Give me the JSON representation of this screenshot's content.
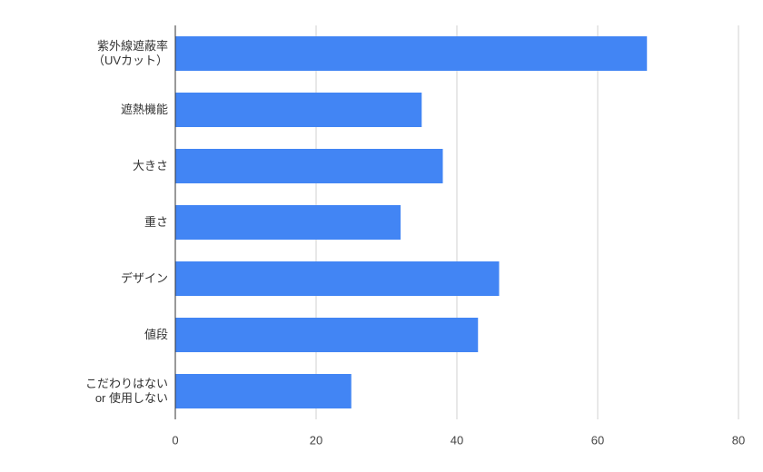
{
  "chart_data": {
    "type": "bar",
    "orientation": "horizontal",
    "categories": [
      "紫外線遮蔽率\n（UVカット）",
      "遮熱機能",
      "大きさ",
      "重さ",
      "デザイン",
      "値段",
      "こだわりはない\nor 使用しない"
    ],
    "values": [
      67,
      35,
      38,
      32,
      46,
      43,
      25
    ],
    "color": "#4285f4",
    "xlim": [
      0,
      80
    ],
    "xticks": [
      0,
      20,
      40,
      60,
      80
    ],
    "grid": true
  }
}
